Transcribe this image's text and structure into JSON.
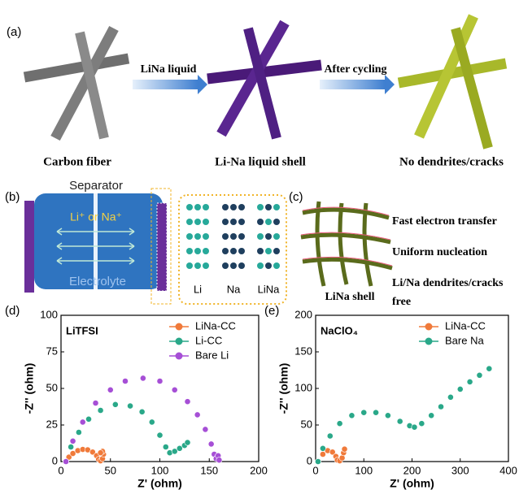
{
  "panel_a": {
    "label": "(a)",
    "arrow_1": "LiNa liquid",
    "arrow_2": "After cycling",
    "captions": [
      "Carbon fiber",
      "Li-Na liquid shell",
      "No dendrites/cracks"
    ]
  },
  "panel_b": {
    "label": "(b)",
    "separator": "Separator",
    "ions": "Li⁺ or Na⁺",
    "electrolyte": "Electrolyte",
    "columns": [
      "Li",
      "Na",
      "LiNa"
    ]
  },
  "panel_c": {
    "label": "(c)",
    "notes": [
      "Fast electron transfer",
      "Uniform nucleation",
      "Li/Na dendrites/cracks",
      "free"
    ],
    "shell": "LiNa shell"
  },
  "chart_data": [
    {
      "type": "scatter",
      "panel": "(d)",
      "annotation": "LiTFSI",
      "x_label": "Z' (ohm)",
      "y_label": "-Z'' (ohm)",
      "xlim": [
        0,
        200
      ],
      "xticks": [
        0,
        50,
        100,
        150,
        200
      ],
      "ylim": [
        0,
        100
      ],
      "yticks": [
        0,
        25,
        50,
        75,
        100
      ],
      "series": [
        {
          "name": "LiNa-CC",
          "color": "#f07a3a",
          "x": [
            5,
            8,
            12,
            17,
            22,
            27,
            32,
            36,
            38,
            40,
            42,
            43,
            42,
            40
          ],
          "values": [
            0,
            3,
            5.5,
            7.5,
            8.3,
            8,
            6.5,
            4,
            1.5,
            0.5,
            2,
            5,
            7,
            6
          ]
        },
        {
          "name": "Li-CC",
          "color": "#2aa889",
          "x": [
            5,
            10,
            18,
            28,
            40,
            55,
            70,
            82,
            92,
            100,
            106,
            110,
            115,
            120,
            125,
            128
          ],
          "values": [
            0,
            10,
            20,
            29,
            35,
            39,
            38,
            34,
            27,
            18,
            10,
            6,
            7,
            9,
            11,
            13
          ]
        },
        {
          "name": "Bare Li",
          "color": "#a64fd6",
          "x": [
            5,
            12,
            22,
            35,
            50,
            65,
            83,
            100,
            115,
            128,
            138,
            146,
            152,
            155,
            157,
            159,
            160
          ],
          "values": [
            0,
            14,
            27,
            40,
            49,
            55,
            57,
            55,
            49,
            41,
            32,
            22,
            12,
            5,
            2,
            4,
            1
          ]
        }
      ]
    },
    {
      "type": "scatter",
      "panel": "(e)",
      "annotation": "NaClO₄",
      "x_label": "Z' (ohm)",
      "y_label": "-Z'' (ohm)",
      "xlim": [
        0,
        400
      ],
      "xticks": [
        0,
        100,
        200,
        300,
        400
      ],
      "ylim": [
        0,
        200
      ],
      "yticks": [
        0,
        50,
        100,
        150,
        200
      ],
      "series": [
        {
          "name": "LiNa-CC",
          "color": "#f07a3a",
          "x": [
            5,
            15,
            25,
            35,
            42,
            45,
            50,
            55,
            58,
            60
          ],
          "values": [
            0,
            10,
            15,
            13,
            7,
            2,
            1,
            5,
            12,
            17
          ]
        },
        {
          "name": "Bare Na",
          "color": "#2aa889",
          "x": [
            5,
            15,
            30,
            50,
            75,
            100,
            125,
            150,
            175,
            195,
            205,
            220,
            240,
            260,
            280,
            300,
            320,
            340,
            360
          ],
          "values": [
            0,
            18,
            35,
            52,
            63,
            67,
            67,
            63,
            55,
            49,
            47,
            52,
            63,
            75,
            88,
            99,
            109,
            118,
            127
          ]
        }
      ]
    }
  ]
}
